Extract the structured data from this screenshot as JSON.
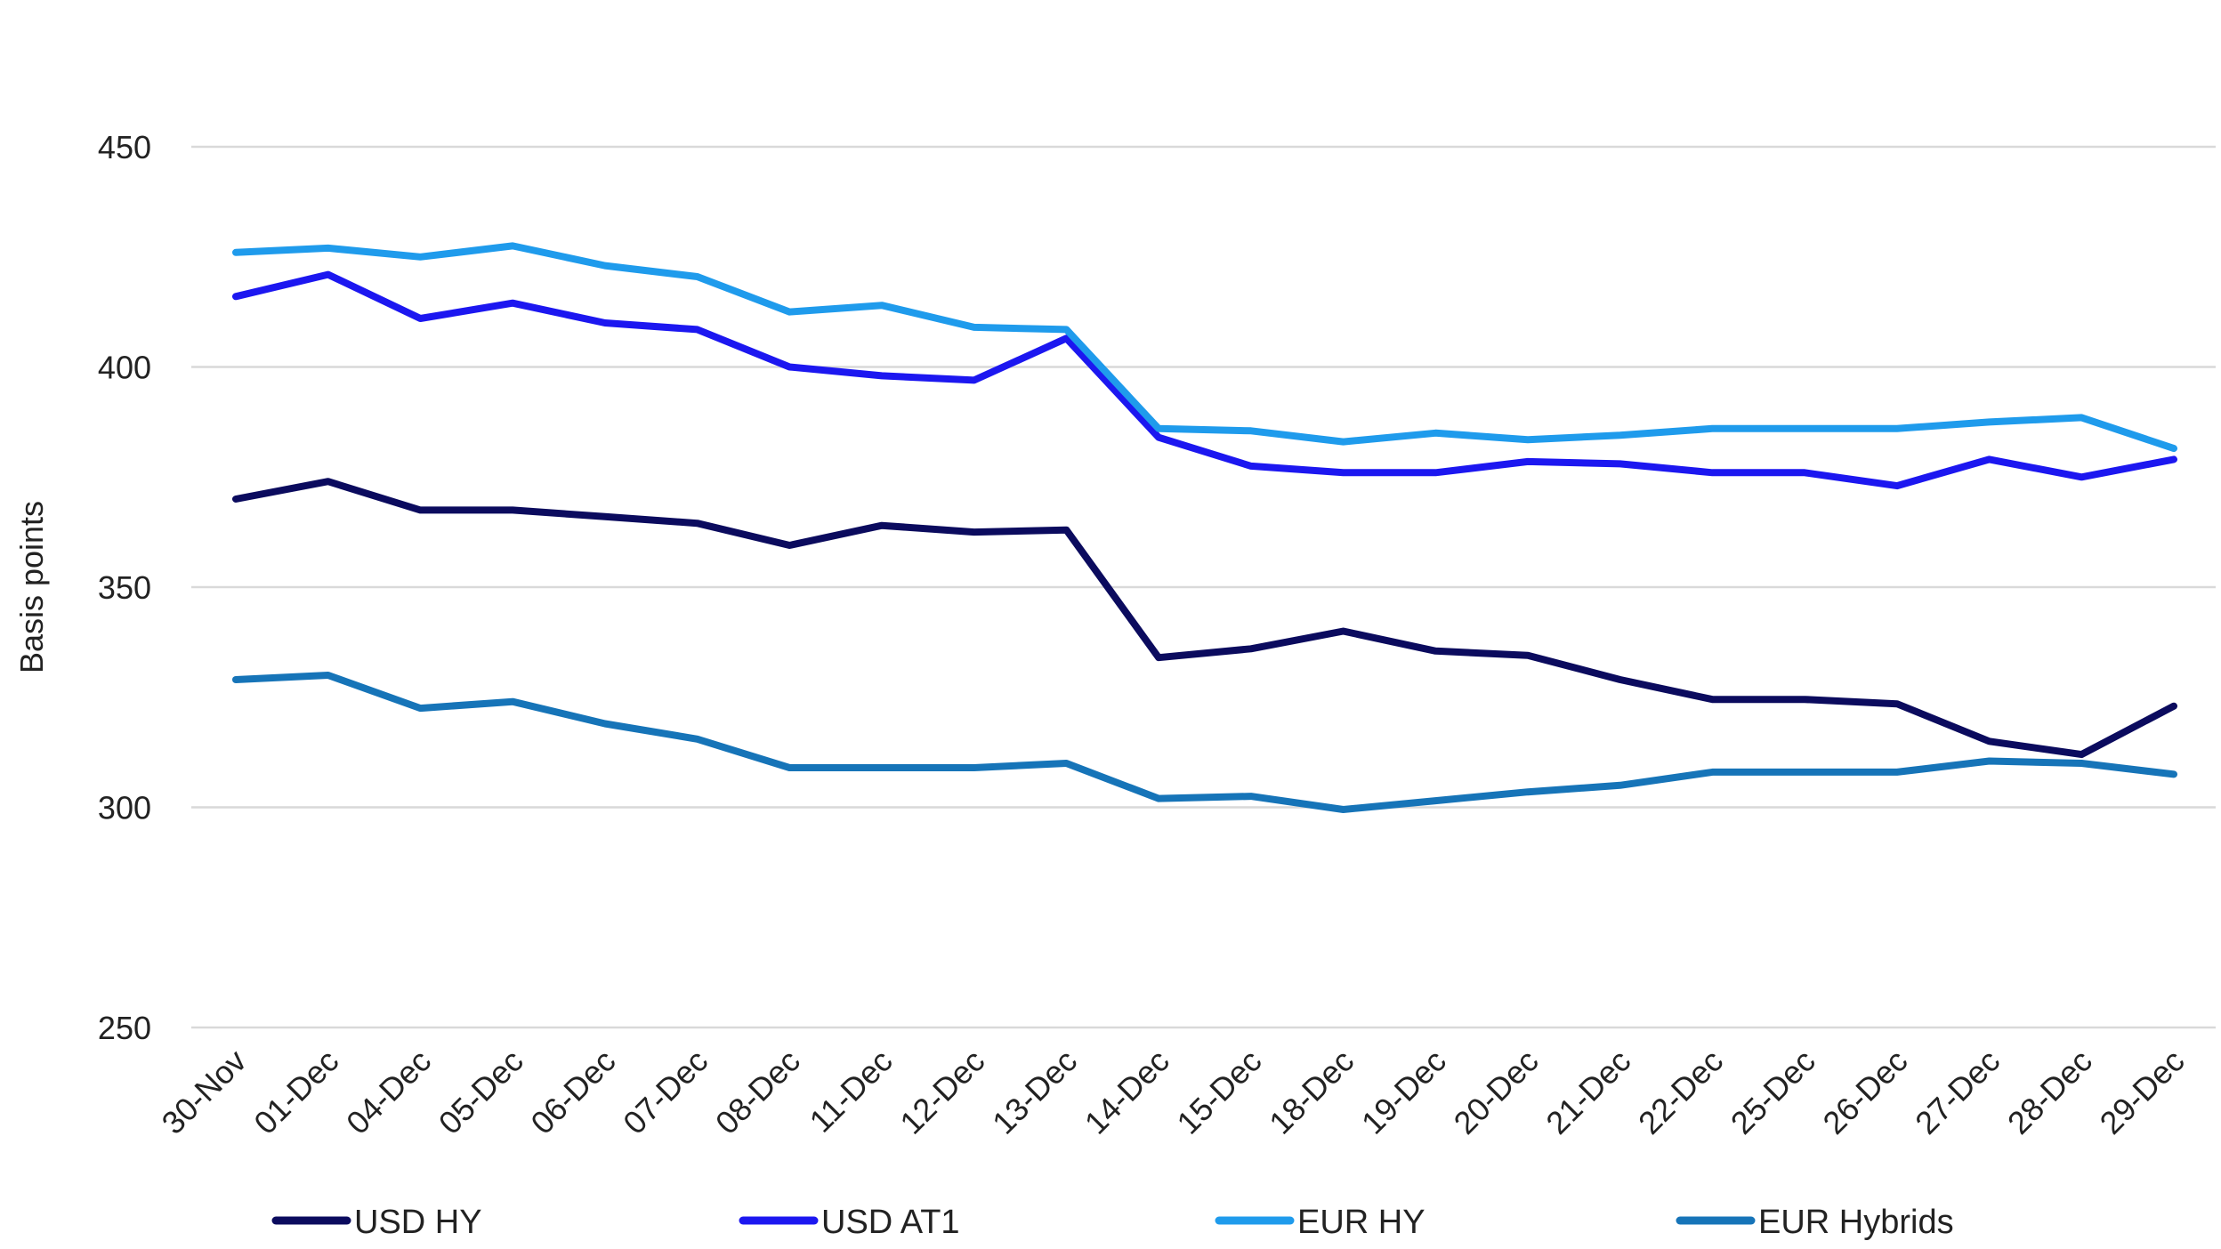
{
  "chart_data": {
    "type": "line",
    "title": "",
    "xlabel": "",
    "ylabel": "Basis points",
    "ylim": [
      250,
      450
    ],
    "yticks": [
      250,
      300,
      350,
      400,
      450
    ],
    "grid": true,
    "legend_position": "bottom",
    "categories": [
      "30-Nov",
      "01-Dec",
      "04-Dec",
      "05-Dec",
      "06-Dec",
      "07-Dec",
      "08-Dec",
      "11-Dec",
      "12-Dec",
      "13-Dec",
      "14-Dec",
      "15-Dec",
      "18-Dec",
      "19-Dec",
      "20-Dec",
      "21-Dec",
      "22-Dec",
      "25-Dec",
      "26-Dec",
      "27-Dec",
      "28-Dec",
      "29-Dec"
    ],
    "series": [
      {
        "name": "USD HY",
        "color": "#0b0b5e",
        "values": [
          370,
          374,
          367.5,
          367.5,
          366,
          364.5,
          359.5,
          364,
          362.5,
          363,
          334,
          336,
          340,
          335.5,
          334.5,
          329,
          324.5,
          324.5,
          323.5,
          315,
          312,
          323
        ]
      },
      {
        "name": "USD AT1",
        "color": "#1c17f0",
        "values": [
          416,
          421,
          411,
          414.5,
          410,
          408.5,
          400,
          398,
          397,
          406.5,
          384,
          377.5,
          376,
          376,
          378.5,
          378,
          376,
          376,
          373,
          379,
          375,
          379
        ]
      },
      {
        "name": "EUR HY",
        "color": "#1f9bec",
        "values": [
          426,
          427,
          425,
          427.5,
          423,
          420.5,
          412.5,
          414,
          409,
          408.5,
          386,
          385.5,
          383,
          385,
          383.5,
          384.5,
          386,
          386,
          386,
          387.5,
          388.5,
          381.5
        ]
      },
      {
        "name": "EUR Hybrids",
        "color": "#1674b8",
        "values": [
          329,
          330,
          322.5,
          324,
          319,
          315.5,
          309,
          309,
          309,
          310,
          302,
          302.5,
          299.5,
          301.5,
          303.5,
          305,
          308,
          308,
          308,
          310.5,
          310,
          307.5
        ]
      }
    ]
  }
}
